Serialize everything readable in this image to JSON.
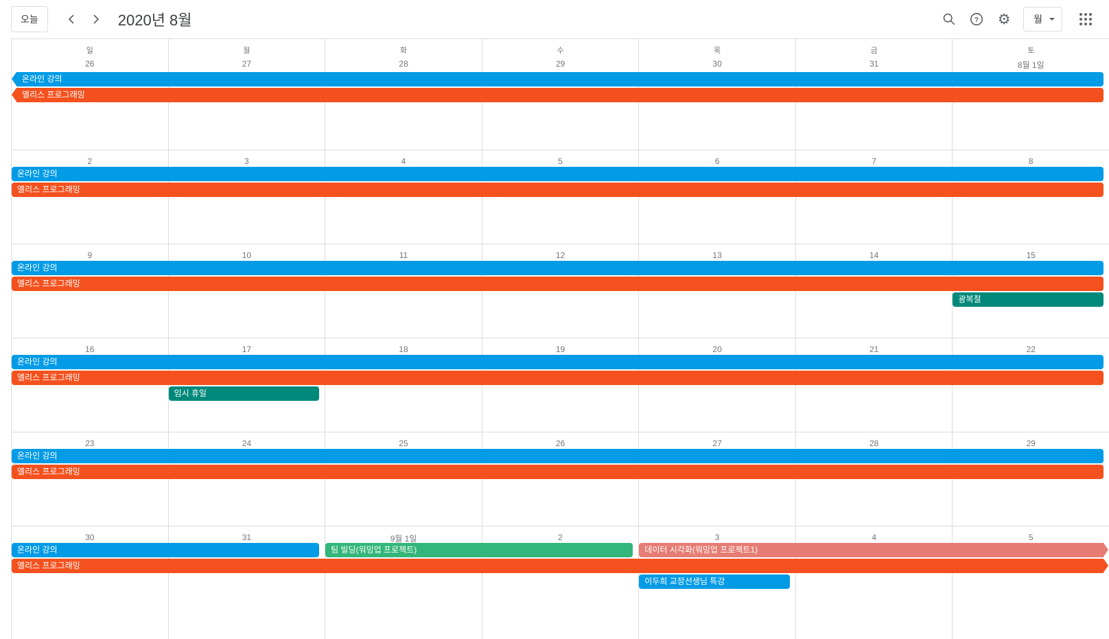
{
  "header": {
    "today_button": "오늘",
    "title": "2020년 8월",
    "view_selector": "월"
  },
  "colors": {
    "blue": "#039BE5",
    "orange": "#F4511E",
    "teal": "#00897B",
    "green": "#33B679",
    "salmon": "#E67C73"
  },
  "weekday_labels": [
    "일",
    "월",
    "화",
    "수",
    "목",
    "금",
    "토"
  ],
  "weeks": [
    {
      "dates": [
        "26",
        "27",
        "28",
        "29",
        "30",
        "31",
        "8월 1일"
      ],
      "events": [
        {
          "label": "온라인 강의",
          "color": "blue",
          "start": 0,
          "span": 7,
          "row": 0,
          "arrow_left": true
        },
        {
          "label": "엘리스 프로그래밍",
          "color": "orange",
          "start": 0,
          "span": 7,
          "row": 1,
          "arrow_left": true
        }
      ]
    },
    {
      "dates": [
        "2",
        "3",
        "4",
        "5",
        "6",
        "7",
        "8"
      ],
      "events": [
        {
          "label": "온라인 강의",
          "color": "blue",
          "start": 0,
          "span": 7,
          "row": 0
        },
        {
          "label": "엘리스 프로그래밍",
          "color": "orange",
          "start": 0,
          "span": 7,
          "row": 1
        }
      ]
    },
    {
      "dates": [
        "9",
        "10",
        "11",
        "12",
        "13",
        "14",
        "15"
      ],
      "events": [
        {
          "label": "온라인 강의",
          "color": "blue",
          "start": 0,
          "span": 7,
          "row": 0
        },
        {
          "label": "엘리스 프로그래밍",
          "color": "orange",
          "start": 0,
          "span": 7,
          "row": 1
        },
        {
          "label": "광복절",
          "color": "teal",
          "start": 6,
          "span": 1,
          "row": 2
        }
      ]
    },
    {
      "dates": [
        "16",
        "17",
        "18",
        "19",
        "20",
        "21",
        "22"
      ],
      "events": [
        {
          "label": "온라인 강의",
          "color": "blue",
          "start": 0,
          "span": 7,
          "row": 0
        },
        {
          "label": "엘리스 프로그래밍",
          "color": "orange",
          "start": 0,
          "span": 7,
          "row": 1
        },
        {
          "label": "임시 휴일",
          "color": "teal",
          "start": 1,
          "span": 1,
          "row": 2
        }
      ]
    },
    {
      "dates": [
        "23",
        "24",
        "25",
        "26",
        "27",
        "28",
        "29"
      ],
      "events": [
        {
          "label": "온라인 강의",
          "color": "blue",
          "start": 0,
          "span": 7,
          "row": 0
        },
        {
          "label": "엘리스 프로그래밍",
          "color": "orange",
          "start": 0,
          "span": 7,
          "row": 1
        }
      ]
    },
    {
      "dates": [
        "30",
        "31",
        "9월 1일",
        "2",
        "3",
        "4",
        "5"
      ],
      "events": [
        {
          "label": "온라인 강의",
          "color": "blue",
          "start": 0,
          "span": 2,
          "row": 0
        },
        {
          "label": "팀 빌딩(워밍업 프로젝트)",
          "color": "green",
          "start": 2,
          "span": 2,
          "row": 0
        },
        {
          "label": "데이터 시각화(워밍업 프로젝트1)",
          "color": "salmon",
          "start": 4,
          "span": 3,
          "row": 0,
          "arrow_right": true
        },
        {
          "label": "엘리스 프로그래밍",
          "color": "orange",
          "start": 0,
          "span": 7,
          "row": 1,
          "arrow_right": true
        },
        {
          "label": "이두희 교장선생님 특강",
          "color": "blue",
          "start": 4,
          "span": 1,
          "row": 2
        }
      ]
    }
  ]
}
